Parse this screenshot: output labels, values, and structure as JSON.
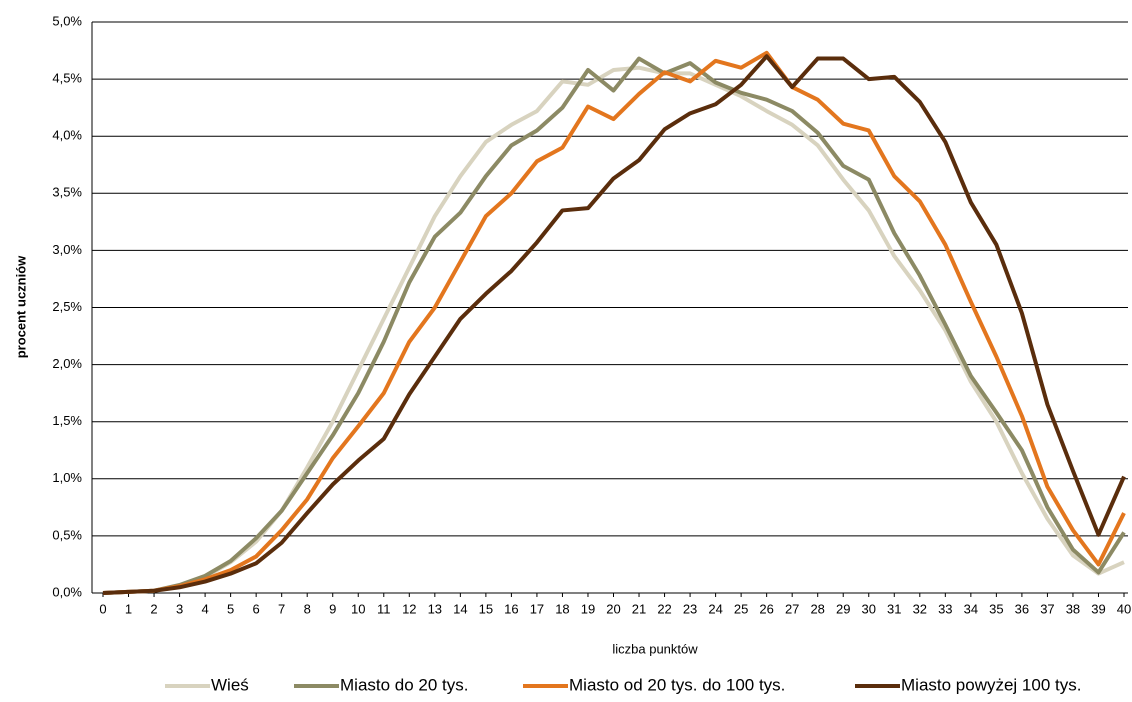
{
  "chart_data": {
    "type": "line",
    "xlabel": "liczba punktów",
    "ylabel": "procent uczniów",
    "x": [
      0,
      1,
      2,
      3,
      4,
      5,
      6,
      7,
      8,
      9,
      10,
      11,
      12,
      13,
      14,
      15,
      16,
      17,
      18,
      19,
      20,
      21,
      22,
      23,
      24,
      25,
      26,
      27,
      28,
      29,
      30,
      31,
      32,
      33,
      34,
      35,
      36,
      37,
      38,
      39,
      40
    ],
    "xlim": [
      0,
      40
    ],
    "ylim": [
      0,
      5
    ],
    "yticks": [
      {
        "value": 0,
        "label": "0,0%"
      },
      {
        "value": 0.5,
        "label": "0,5%"
      },
      {
        "value": 1,
        "label": "1,0%"
      },
      {
        "value": 1.5,
        "label": "1,5%"
      },
      {
        "value": 2,
        "label": "2,0%"
      },
      {
        "value": 2.5,
        "label": "2,5%"
      },
      {
        "value": 3,
        "label": "3,0%"
      },
      {
        "value": 3.5,
        "label": "3,5%"
      },
      {
        "value": 4,
        "label": "4,0%"
      },
      {
        "value": 4.5,
        "label": "4,5%"
      },
      {
        "value": 5,
        "label": "5,0%"
      }
    ],
    "grid": true,
    "legend": "bottom",
    "series": [
      {
        "name": "Wieś",
        "color": "#d8d3bf",
        "values": [
          0,
          0.01,
          0.02,
          0.06,
          0.14,
          0.27,
          0.45,
          0.72,
          1.1,
          1.5,
          1.95,
          2.4,
          2.85,
          3.3,
          3.65,
          3.95,
          4.1,
          4.22,
          4.48,
          4.45,
          4.58,
          4.6,
          4.55,
          4.55,
          4.45,
          4.35,
          4.22,
          4.1,
          3.92,
          3.62,
          3.35,
          2.95,
          2.65,
          2.3,
          1.85,
          1.5,
          1.05,
          0.65,
          0.33,
          0.17,
          0.27
        ]
      },
      {
        "name": "Miasto do 20 tys.",
        "color": "#8c8a64",
        "values": [
          0,
          0.01,
          0.02,
          0.07,
          0.15,
          0.28,
          0.48,
          0.72,
          1.05,
          1.38,
          1.75,
          2.2,
          2.72,
          3.12,
          3.33,
          3.65,
          3.92,
          4.05,
          4.25,
          4.58,
          4.4,
          4.68,
          4.55,
          4.64,
          4.47,
          4.38,
          4.32,
          4.22,
          4.03,
          3.74,
          3.62,
          3.15,
          2.78,
          2.35,
          1.9,
          1.58,
          1.25,
          0.75,
          0.38,
          0.18,
          0.53
        ]
      },
      {
        "name": "Miasto od 20 tys. do 100 tys.",
        "color": "#e3761e",
        "values": [
          0,
          0.01,
          0.02,
          0.06,
          0.12,
          0.2,
          0.32,
          0.55,
          0.82,
          1.18,
          1.46,
          1.75,
          2.2,
          2.5,
          2.9,
          3.3,
          3.5,
          3.78,
          3.9,
          4.26,
          4.15,
          4.37,
          4.56,
          4.48,
          4.66,
          4.6,
          4.73,
          4.43,
          4.32,
          4.11,
          4.05,
          3.65,
          3.43,
          3.05,
          2.55,
          2.07,
          1.55,
          0.93,
          0.55,
          0.25,
          0.7
        ]
      },
      {
        "name": "Miasto powyżej 100 tys.",
        "color": "#5a2d0c",
        "values": [
          0,
          0.01,
          0.02,
          0.05,
          0.1,
          0.17,
          0.26,
          0.44,
          0.7,
          0.95,
          1.16,
          1.35,
          1.74,
          2.07,
          2.4,
          2.62,
          2.82,
          3.07,
          3.35,
          3.37,
          3.63,
          3.79,
          4.06,
          4.2,
          4.28,
          4.45,
          4.7,
          4.43,
          4.68,
          4.68,
          4.5,
          4.52,
          4.3,
          3.95,
          3.42,
          3.05,
          2.45,
          1.65,
          1.07,
          0.51,
          1.02
        ]
      }
    ]
  }
}
